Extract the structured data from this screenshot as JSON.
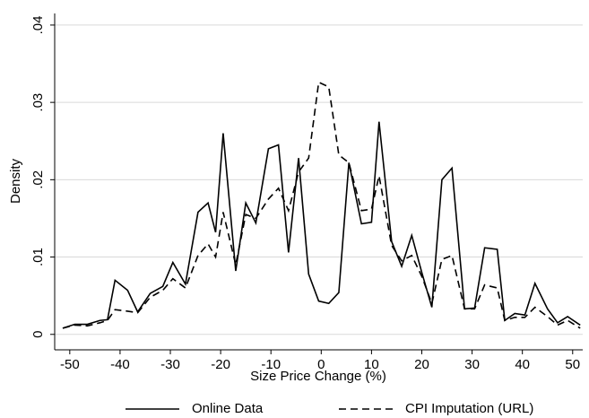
{
  "chart_data": {
    "type": "line",
    "y_label": "Density",
    "x_label": "Size  Price Change (%)",
    "xlim": [
      -53,
      52
    ],
    "ylim": [
      -0.002,
      0.0415
    ],
    "xticks": [
      -50,
      -40,
      -30,
      -20,
      -10,
      0,
      10,
      20,
      30,
      40,
      50
    ],
    "yticks": [
      0,
      {
        "value": 0.01,
        "label": ".01"
      },
      {
        "value": 0.02,
        "label": ".02"
      },
      {
        "value": 0.03,
        "label": ".03"
      },
      {
        "value": 0.04,
        "label": ".04"
      }
    ],
    "grid": true,
    "legend": "bottom",
    "x": [
      -51.4,
      -49,
      -46.5,
      -44,
      -42.5,
      -41,
      -38.5,
      -36.5,
      -34,
      -31.5,
      -29.5,
      -27,
      -24.5,
      -22.5,
      -21,
      -19.5,
      -17,
      -15,
      -13,
      -10.5,
      -8.5,
      -6.5,
      -4.5,
      -2.5,
      -0.5,
      1.5,
      3.5,
      5.5,
      8,
      10,
      11.5,
      14,
      16,
      18,
      20,
      22,
      24,
      26,
      28.5,
      30.5,
      32.5,
      35,
      36.5,
      38.5,
      40.5,
      42.5,
      45,
      47,
      49,
      51.5
    ],
    "series": [
      {
        "name": "Online Data",
        "color": "#000000",
        "dash": "solid",
        "values": [
          0.0008,
          0.0013,
          0.0013,
          0.0018,
          0.0019,
          0.007,
          0.0057,
          0.0029,
          0.0053,
          0.0062,
          0.0093,
          0.0065,
          0.0158,
          0.017,
          0.0132,
          0.026,
          0.0082,
          0.017,
          0.0144,
          0.024,
          0.0245,
          0.0106,
          0.0228,
          0.0078,
          0.0043,
          0.004,
          0.0054,
          0.0222,
          0.0143,
          0.0145,
          0.0275,
          0.012,
          0.0088,
          0.0128,
          0.008,
          0.0035,
          0.02,
          0.0215,
          0.0033,
          0.0034,
          0.0112,
          0.011,
          0.0018,
          0.0027,
          0.0025,
          0.0066,
          0.0033,
          0.0015,
          0.0023,
          0.0012
        ]
      },
      {
        "name": "CPI Imputation (URL)",
        "color": "#000000",
        "dash": "dashed",
        "values": [
          0.0008,
          0.0012,
          0.0011,
          0.0015,
          0.0018,
          0.0032,
          0.003,
          0.0028,
          0.0048,
          0.0057,
          0.0072,
          0.006,
          0.0102,
          0.0117,
          0.01,
          0.0158,
          0.009,
          0.0155,
          0.015,
          0.0175,
          0.0189,
          0.016,
          0.021,
          0.0228,
          0.0326,
          0.032,
          0.0232,
          0.0222,
          0.016,
          0.0162,
          0.0205,
          0.0115,
          0.0095,
          0.0102,
          0.0075,
          0.004,
          0.0097,
          0.0102,
          0.0033,
          0.0033,
          0.0064,
          0.006,
          0.0018,
          0.0022,
          0.0022,
          0.0035,
          0.0023,
          0.0012,
          0.0018,
          0.0008
        ]
      }
    ]
  }
}
